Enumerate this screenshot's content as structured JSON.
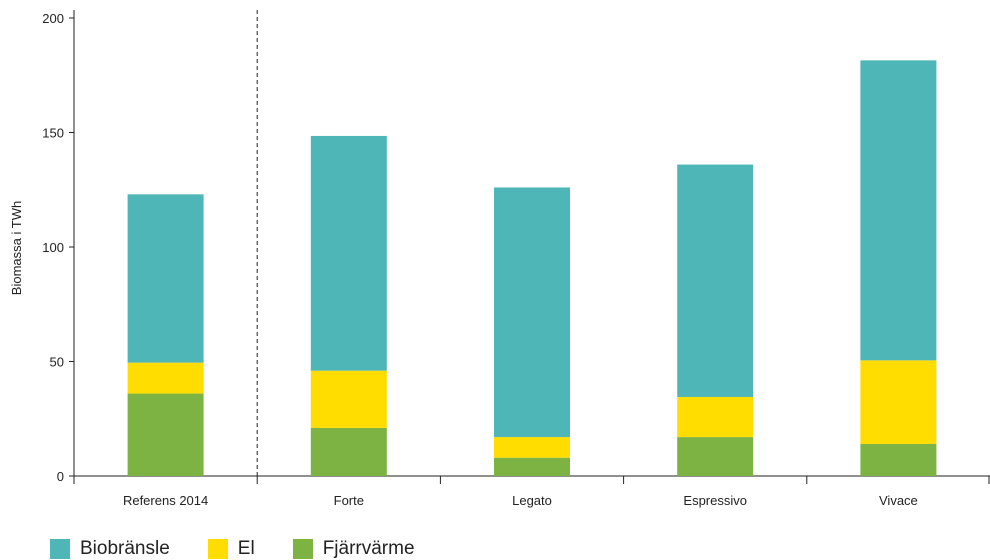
{
  "chart_data": {
    "type": "bar",
    "stacked": true,
    "categories": [
      "Referens 2014",
      "Forte",
      "Legato",
      "Espressivo",
      "Vivace"
    ],
    "series": [
      {
        "name": "Fjärrvärme",
        "color": "#7cb342",
        "values": [
          36,
          21,
          8,
          17,
          14
        ]
      },
      {
        "name": "El",
        "color": "#ffdd00",
        "values": [
          13.5,
          25,
          9,
          17.5,
          36.5
        ]
      },
      {
        "name": "Biobränsle",
        "color": "#4fb6b8",
        "values": [
          73.5,
          102.5,
          109,
          101.5,
          131
        ]
      }
    ],
    "legend_order": [
      "Biobränsle",
      "El",
      "Fjärrvärme"
    ],
    "ylabel": "Biomassa i TWh",
    "xlabel": "",
    "ylim": [
      0,
      200
    ],
    "yticks": [
      0,
      50,
      100,
      150,
      200
    ],
    "grid": false,
    "divider_after_category": "Referens 2014",
    "legend_position": "bottom-left"
  }
}
